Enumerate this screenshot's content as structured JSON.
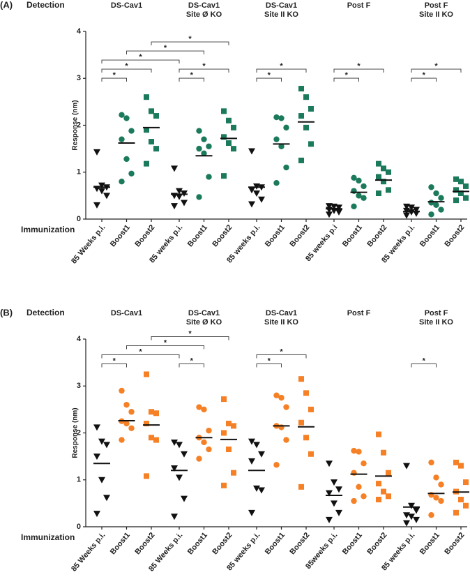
{
  "chart_data": [
    {
      "type": "dot",
      "panel": "(A)",
      "row_label": "Detection",
      "x_label": "Immunization",
      "y_label": "Response (nm)",
      "ylim": [
        0,
        4
      ],
      "yticks": [
        0,
        1,
        2,
        3,
        4
      ],
      "groups": [
        [
          "DS-Cav1"
        ],
        [
          "DS-Cav1",
          "Site Ø KO"
        ],
        [
          "DS-Cav1",
          "Site II KO"
        ],
        [
          "Post F"
        ],
        [
          "Post F",
          "Site II KO"
        ]
      ],
      "categories": [
        "85 Weeks p.i.",
        "Boost1",
        "Boost2",
        "85 weeks p.i.",
        "Boost1",
        "Boost2",
        "85 weeks p.i.",
        "Boost1",
        "Boost2",
        "85 weeks p.i",
        "Boost1",
        "Boost2",
        "85 weeks p.i.",
        "Boost1",
        "Boost2"
      ],
      "markers": [
        "triangle",
        "circle",
        "square"
      ],
      "colors": [
        "#111111",
        "#1b7a5c",
        "#1b7a5c"
      ],
      "points": [
        [
          1.43,
          0.72,
          0.68,
          0.65,
          0.6,
          0.5,
          0.3
        ],
        [
          2.22,
          2.15,
          1.88,
          1.7,
          1.28,
          0.97,
          0.8
        ],
        [
          2.6,
          2.3,
          2.2,
          1.9,
          1.65,
          1.5,
          1.18
        ],
        [
          1.08,
          0.6,
          0.55,
          0.5,
          0.48,
          0.35,
          0.28
        ],
        [
          1.88,
          1.7,
          1.55,
          1.5,
          1.4,
          0.9,
          0.47
        ],
        [
          2.3,
          2.1,
          1.95,
          1.75,
          1.62,
          1.5,
          0.92
        ],
        [
          1.45,
          0.7,
          0.68,
          0.62,
          0.55,
          0.42,
          0.32
        ],
        [
          2.17,
          2.15,
          1.95,
          1.7,
          1.55,
          1.1,
          0.77
        ],
        [
          2.78,
          2.6,
          2.35,
          2.2,
          1.95,
          1.6,
          1.25
        ],
        [
          0.28,
          0.27,
          0.25,
          0.2,
          0.18,
          0.15,
          0.1
        ],
        [
          0.88,
          0.82,
          0.7,
          0.6,
          0.5,
          0.45,
          0.27
        ],
        [
          1.18,
          1.08,
          1.0,
          0.9,
          0.8,
          0.62,
          0.55
        ],
        [
          0.27,
          0.25,
          0.2,
          0.18,
          0.15,
          0.12,
          0.08
        ],
        [
          0.68,
          0.55,
          0.45,
          0.35,
          0.3,
          0.2,
          0.1
        ],
        [
          0.85,
          0.8,
          0.7,
          0.62,
          0.55,
          0.45,
          0.4
        ]
      ],
      "means": [
        0.68,
        1.62,
        1.95,
        0.53,
        1.35,
        1.72,
        0.68,
        1.6,
        2.07,
        0.22,
        0.57,
        0.83,
        0.16,
        0.37,
        0.59
      ],
      "comparisons": [
        {
          "pair": [
            0,
            1
          ],
          "label": "*"
        },
        {
          "pair": [
            0,
            2
          ],
          "label": "*"
        },
        {
          "pair": [
            0,
            3
          ],
          "label": "*"
        },
        {
          "pair": [
            1,
            4
          ],
          "label": "*"
        },
        {
          "pair": [
            2,
            5
          ],
          "label": "*"
        },
        {
          "pair": [
            3,
            4
          ],
          "label": "*"
        },
        {
          "pair": [
            3,
            5
          ],
          "label": "*"
        },
        {
          "pair": [
            6,
            7
          ],
          "label": "*"
        },
        {
          "pair": [
            6,
            8
          ],
          "label": "*"
        },
        {
          "pair": [
            9,
            10
          ],
          "label": "*"
        },
        {
          "pair": [
            9,
            11
          ],
          "label": "*"
        },
        {
          "pair": [
            12,
            13
          ],
          "label": "*"
        },
        {
          "pair": [
            12,
            14
          ],
          "label": "*"
        }
      ]
    },
    {
      "type": "dot",
      "panel": "(B)",
      "row_label": "Detection",
      "x_label": "Immunization",
      "y_label": "Response (nm)",
      "ylim": [
        0,
        4
      ],
      "yticks": [
        0,
        1,
        2,
        3,
        4
      ],
      "groups": [
        [
          "DS-Cav1"
        ],
        [
          "DS-Cav1",
          "Site Ø KO"
        ],
        [
          "DS-Cav1",
          "Site II KO"
        ],
        [
          "Post F"
        ],
        [
          "Post F",
          "Site II KO"
        ]
      ],
      "categories": [
        "85 Weeks p.i.",
        "Boost1",
        "Boost2",
        "85 Weeks p.i.",
        "Boost1",
        "Boost2",
        "85 weeks p.i.",
        "Boost1",
        "Boost2",
        "85weeks p.i.",
        "Boost1",
        "Boost2",
        "85 weeks p.i.",
        "Boost1",
        "Boost2"
      ],
      "markers": [
        "triangle",
        "circle",
        "square"
      ],
      "colors": [
        "#111111",
        "#f58025",
        "#f58025"
      ],
      "points": [
        [
          2.12,
          1.82,
          1.75,
          1.5,
          1.0,
          0.62,
          0.28
        ],
        [
          2.9,
          2.6,
          2.45,
          2.25,
          2.2,
          2.1,
          1.85
        ],
        [
          3.25,
          2.45,
          2.42,
          2.2,
          1.9,
          1.85,
          1.08
        ],
        [
          1.8,
          1.75,
          1.55,
          1.25,
          1.05,
          0.6,
          0.22
        ],
        [
          2.55,
          2.5,
          2.05,
          1.9,
          1.8,
          1.65,
          1.45
        ],
        [
          2.72,
          2.2,
          2.15,
          2.0,
          1.65,
          1.15,
          0.88
        ],
        [
          1.82,
          1.75,
          1.55,
          1.4,
          0.82,
          0.78,
          0.3
        ],
        [
          2.8,
          2.75,
          2.55,
          2.15,
          2.12,
          1.85,
          1.32
        ],
        [
          3.15,
          2.85,
          2.5,
          2.22,
          1.9,
          1.55,
          0.85
        ],
        [
          1.35,
          0.95,
          0.8,
          0.72,
          0.5,
          0.3,
          0.15
        ],
        [
          1.62,
          1.6,
          1.35,
          1.15,
          0.85,
          0.65,
          0.55
        ],
        [
          1.97,
          1.58,
          1.15,
          0.92,
          0.75,
          0.65,
          0.58
        ],
        [
          1.3,
          0.45,
          0.35,
          0.25,
          0.22,
          0.15,
          0.08
        ],
        [
          1.37,
          1.05,
          0.9,
          0.68,
          0.62,
          0.55,
          0.25
        ],
        [
          1.37,
          1.3,
          0.95,
          0.75,
          0.58,
          0.45,
          0.3
        ]
      ],
      "means": [
        1.35,
        2.26,
        2.17,
        1.2,
        1.9,
        1.86,
        1.2,
        2.15,
        2.13,
        0.67,
        1.12,
        1.08,
        0.42,
        0.71,
        0.74
      ],
      "comparisons": [
        {
          "pair": [
            0,
            1
          ],
          "label": "*"
        },
        {
          "pair": [
            0,
            3
          ],
          "label": "*"
        },
        {
          "pair": [
            1,
            4
          ],
          "label": "*"
        },
        {
          "pair": [
            2,
            5
          ],
          "label": "*"
        },
        {
          "pair": [
            3,
            4
          ],
          "label": "*"
        },
        {
          "pair": [
            6,
            7
          ],
          "label": "*"
        },
        {
          "pair": [
            6,
            8
          ],
          "label": "*"
        },
        {
          "pair": [
            12,
            13
          ],
          "label": "*"
        }
      ]
    }
  ]
}
